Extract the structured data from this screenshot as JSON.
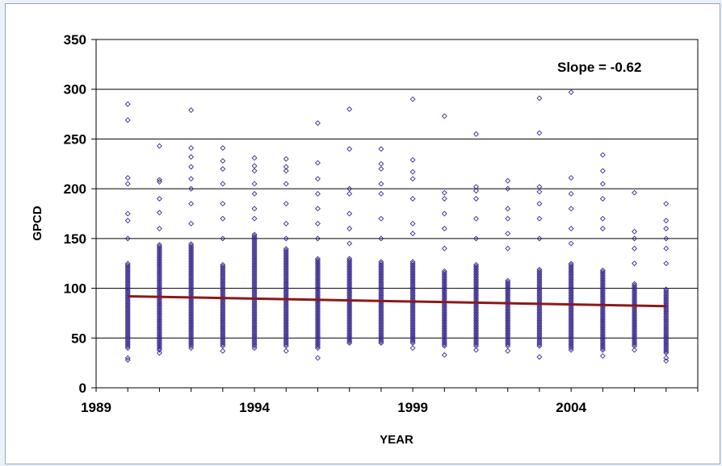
{
  "chart_data": {
    "type": "scatter",
    "title": "",
    "xlabel": "YEAR",
    "ylabel": "GPCD",
    "xlim": [
      1989,
      2008
    ],
    "ylim": [
      0,
      350
    ],
    "x_ticks": [
      "1989",
      "1994",
      "1999",
      "2004"
    ],
    "y_ticks": [
      "0",
      "50",
      "100",
      "150",
      "200",
      "250",
      "300",
      "350"
    ],
    "grid": "horizontal",
    "annotation": "Slope = -0.62",
    "colors": {
      "points": "#3b2a8f",
      "trendline": "#8b1a1a"
    },
    "series": [
      {
        "type": "scatter",
        "description_years": [
          1990,
          1991,
          1992,
          1993,
          1994,
          1995,
          1996,
          1997,
          1998,
          1999,
          2000,
          2001,
          2002,
          2003,
          2004,
          2005,
          2006,
          2007
        ],
        "dense_range": [
          [
            1990,
            40,
            125
          ],
          [
            1991,
            38,
            145
          ],
          [
            1992,
            42,
            145
          ],
          [
            1993,
            42,
            125
          ],
          [
            1994,
            42,
            155
          ],
          [
            1995,
            42,
            140
          ],
          [
            1996,
            40,
            130
          ],
          [
            1997,
            45,
            130
          ],
          [
            1998,
            45,
            128
          ],
          [
            1999,
            45,
            128
          ],
          [
            2000,
            42,
            118
          ],
          [
            2001,
            42,
            125
          ],
          [
            2002,
            42,
            108
          ],
          [
            2003,
            42,
            120
          ],
          [
            2004,
            40,
            125
          ],
          [
            2005,
            38,
            118
          ],
          [
            2006,
            42,
            105
          ],
          [
            2007,
            35,
            100
          ]
        ],
        "outliers": [
          [
            1990,
            285
          ],
          [
            1990,
            269
          ],
          [
            1990,
            211
          ],
          [
            1990,
            205
          ],
          [
            1990,
            175
          ],
          [
            1990,
            168
          ],
          [
            1990,
            150
          ],
          [
            1990,
            30
          ],
          [
            1990,
            28
          ],
          [
            1991,
            243
          ],
          [
            1991,
            209
          ],
          [
            1991,
            207
          ],
          [
            1991,
            190
          ],
          [
            1991,
            176
          ],
          [
            1991,
            160
          ],
          [
            1991,
            35
          ],
          [
            1992,
            279
          ],
          [
            1992,
            241
          ],
          [
            1992,
            232
          ],
          [
            1992,
            222
          ],
          [
            1992,
            210
          ],
          [
            1992,
            200
          ],
          [
            1992,
            185
          ],
          [
            1992,
            165
          ],
          [
            1992,
            40
          ],
          [
            1993,
            241
          ],
          [
            1993,
            228
          ],
          [
            1993,
            220
          ],
          [
            1993,
            205
          ],
          [
            1993,
            185
          ],
          [
            1993,
            170
          ],
          [
            1993,
            150
          ],
          [
            1993,
            37
          ],
          [
            1994,
            231
          ],
          [
            1994,
            223
          ],
          [
            1994,
            218
          ],
          [
            1994,
            205
          ],
          [
            1994,
            195
          ],
          [
            1994,
            180
          ],
          [
            1994,
            170
          ],
          [
            1994,
            40
          ],
          [
            1995,
            230
          ],
          [
            1995,
            222
          ],
          [
            1995,
            218
          ],
          [
            1995,
            205
          ],
          [
            1995,
            185
          ],
          [
            1995,
            165
          ],
          [
            1995,
            150
          ],
          [
            1995,
            37
          ],
          [
            1996,
            266
          ],
          [
            1996,
            226
          ],
          [
            1996,
            210
          ],
          [
            1996,
            195
          ],
          [
            1996,
            180
          ],
          [
            1996,
            165
          ],
          [
            1996,
            150
          ],
          [
            1996,
            30
          ],
          [
            1997,
            280
          ],
          [
            1997,
            240
          ],
          [
            1997,
            200
          ],
          [
            1997,
            195
          ],
          [
            1997,
            175
          ],
          [
            1997,
            160
          ],
          [
            1997,
            145
          ],
          [
            1998,
            240
          ],
          [
            1998,
            225
          ],
          [
            1998,
            220
          ],
          [
            1998,
            205
          ],
          [
            1998,
            195
          ],
          [
            1998,
            170
          ],
          [
            1998,
            150
          ],
          [
            1999,
            290
          ],
          [
            1999,
            229
          ],
          [
            1999,
            217
          ],
          [
            1999,
            210
          ],
          [
            1999,
            190
          ],
          [
            1999,
            165
          ],
          [
            1999,
            155
          ],
          [
            1999,
            40
          ],
          [
            2000,
            273
          ],
          [
            2000,
            196
          ],
          [
            2000,
            190
          ],
          [
            2000,
            175
          ],
          [
            2000,
            160
          ],
          [
            2000,
            140
          ],
          [
            2000,
            33
          ],
          [
            2001,
            255
          ],
          [
            2001,
            202
          ],
          [
            2001,
            198
          ],
          [
            2001,
            190
          ],
          [
            2001,
            170
          ],
          [
            2001,
            150
          ],
          [
            2001,
            38
          ],
          [
            2002,
            208
          ],
          [
            2002,
            200
          ],
          [
            2002,
            180
          ],
          [
            2002,
            170
          ],
          [
            2002,
            155
          ],
          [
            2002,
            140
          ],
          [
            2002,
            37
          ],
          [
            2003,
            291
          ],
          [
            2003,
            256
          ],
          [
            2003,
            202
          ],
          [
            2003,
            197
          ],
          [
            2003,
            185
          ],
          [
            2003,
            170
          ],
          [
            2003,
            150
          ],
          [
            2003,
            31
          ],
          [
            2004,
            297
          ],
          [
            2004,
            211
          ],
          [
            2004,
            195
          ],
          [
            2004,
            180
          ],
          [
            2004,
            160
          ],
          [
            2004,
            145
          ],
          [
            2004,
            38
          ],
          [
            2005,
            234
          ],
          [
            2005,
            218
          ],
          [
            2005,
            205
          ],
          [
            2005,
            190
          ],
          [
            2005,
            170
          ],
          [
            2005,
            160
          ],
          [
            2005,
            32
          ],
          [
            2006,
            196
          ],
          [
            2006,
            157
          ],
          [
            2006,
            150
          ],
          [
            2006,
            140
          ],
          [
            2006,
            125
          ],
          [
            2006,
            38
          ],
          [
            2007,
            185
          ],
          [
            2007,
            168
          ],
          [
            2007,
            160
          ],
          [
            2007,
            150
          ],
          [
            2007,
            140
          ],
          [
            2007,
            125
          ],
          [
            2007,
            30
          ],
          [
            2007,
            27
          ]
        ]
      },
      {
        "type": "line",
        "x": [
          1990,
          2007
        ],
        "y": [
          92,
          82
        ]
      }
    ]
  }
}
